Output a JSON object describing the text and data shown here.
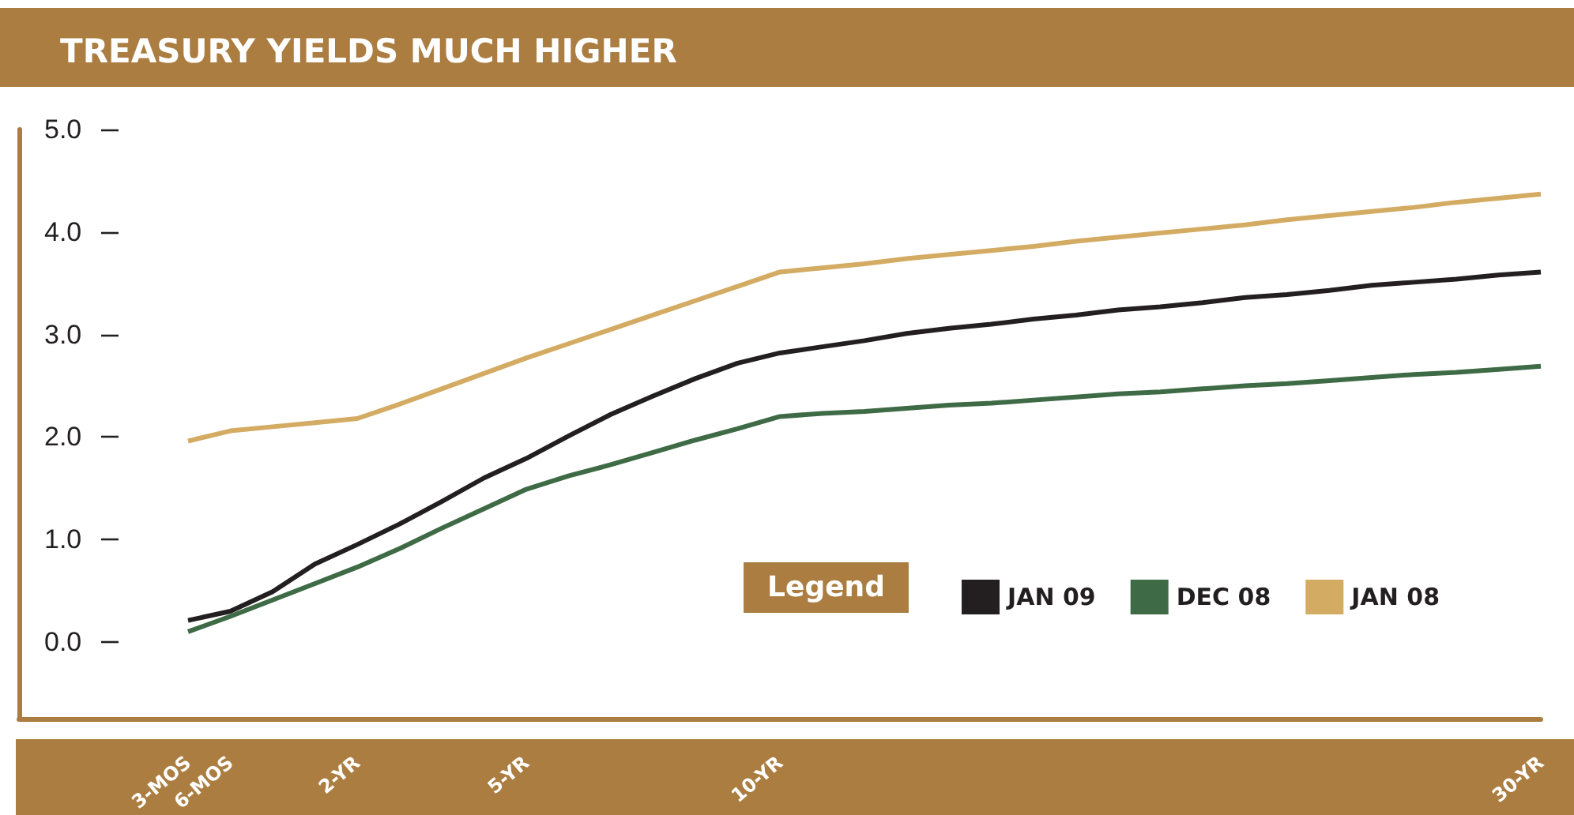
{
  "chart_data": {
    "type": "line",
    "title": "TREASURY YIELDS MUCH HIGHER",
    "legend_title": "Legend",
    "categories": [
      "3-MOS",
      "6-MOS",
      null,
      null,
      "2-YR",
      null,
      null,
      null,
      "5-YR",
      null,
      null,
      null,
      null,
      null,
      "10-YR",
      null,
      null,
      null,
      null,
      null,
      null,
      null,
      null,
      null,
      null,
      null,
      null,
      null,
      null,
      null,
      null,
      null,
      "30-YR"
    ],
    "series": [
      {
        "name": "JAN 09",
        "color": "#231f20",
        "values": [
          0.21,
          0.3,
          0.49,
          0.76,
          0.95,
          1.15,
          1.37,
          1.6,
          1.79,
          2.01,
          2.22,
          2.4,
          2.57,
          2.72,
          2.82,
          2.88,
          2.94,
          3.01,
          3.06,
          3.1,
          3.15,
          3.19,
          3.24,
          3.27,
          3.31,
          3.36,
          3.39,
          3.43,
          3.48,
          3.51,
          3.54,
          3.58,
          3.61
        ]
      },
      {
        "name": "DEC 08",
        "color": "#3e6b45",
        "values": [
          0.1,
          0.25,
          0.41,
          0.57,
          0.73,
          0.91,
          1.11,
          1.3,
          1.49,
          1.62,
          1.73,
          1.85,
          1.97,
          2.08,
          2.2,
          2.23,
          2.25,
          2.28,
          2.31,
          2.33,
          2.36,
          2.39,
          2.42,
          2.44,
          2.47,
          2.5,
          2.52,
          2.55,
          2.58,
          2.61,
          2.63,
          2.66,
          2.69
        ]
      },
      {
        "name": "JAN 08",
        "color": "#d4ab63",
        "values": [
          1.96,
          2.06,
          2.1,
          2.14,
          2.18,
          2.32,
          2.47,
          2.62,
          2.77,
          2.91,
          3.05,
          3.19,
          3.33,
          3.47,
          3.61,
          3.65,
          3.69,
          3.74,
          3.78,
          3.82,
          3.86,
          3.91,
          3.95,
          3.99,
          4.03,
          4.07,
          4.12,
          4.16,
          4.2,
          4.24,
          4.29,
          4.33,
          4.37
        ]
      }
    ],
    "ylim": [
      -0.75,
      5.0
    ],
    "yticks": [
      {
        "value": 0,
        "label": "0.0"
      },
      {
        "value": 1,
        "label": "1.0"
      },
      {
        "value": 2,
        "label": "2.0"
      },
      {
        "value": 3,
        "label": "3.0"
      },
      {
        "value": 4,
        "label": "4.0"
      },
      {
        "value": 5,
        "label": "5.0"
      }
    ],
    "marker": "none",
    "legend": "bottom right"
  }
}
